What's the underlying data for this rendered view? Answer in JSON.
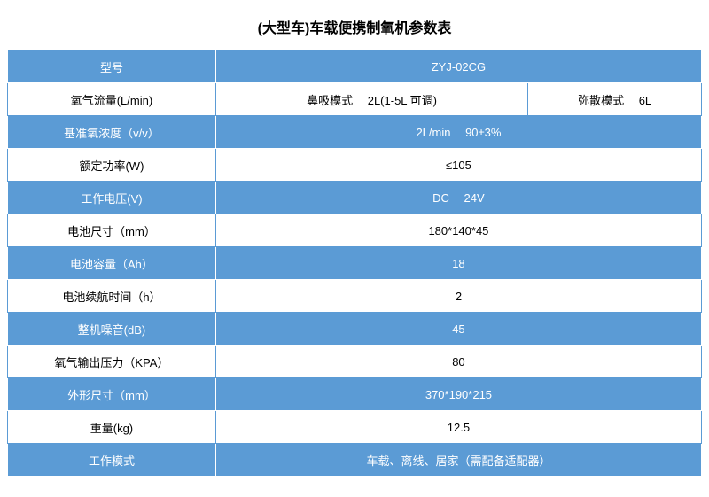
{
  "title": "(大型车)车载便携制氧机参数表",
  "colors": {
    "accent": "#5b9bd5",
    "text_on_accent": "#ffffff",
    "text_on_white": "#000000",
    "border": "#5b9bd5"
  },
  "rows": [
    {
      "style": "blue",
      "label": "型号",
      "value": "ZYJ-02CG"
    },
    {
      "style": "white",
      "label": "氧气流量(L/min)",
      "value_mid": "鼻吸模式  2L(1-5L 可调)",
      "value_right": "弥散模式  6L"
    },
    {
      "style": "blue",
      "label": "基准氧浓度（v/v）",
      "value": "2L/min  90±3%"
    },
    {
      "style": "white",
      "label": "额定功率(W)",
      "value": "≤105"
    },
    {
      "style": "blue",
      "label": "工作电压(V)",
      "value": "DC  24V"
    },
    {
      "style": "white",
      "label": "电池尺寸（mm）",
      "value": "180*140*45"
    },
    {
      "style": "blue",
      "label": "电池容量（Ah）",
      "value": "18"
    },
    {
      "style": "white",
      "label": "电池续航时间（h）",
      "value": "2"
    },
    {
      "style": "blue",
      "label": "整机噪音(dB)",
      "value": "45"
    },
    {
      "style": "white",
      "label": "氧气输出压力（KPA）",
      "value": "80"
    },
    {
      "style": "blue",
      "label": "外形尺寸（mm）",
      "value": "370*190*215"
    },
    {
      "style": "white",
      "label": "重量(kg)",
      "value": "12.5"
    },
    {
      "style": "blue",
      "label": "工作模式",
      "value": "车载、离线、居家（需配备适配器）"
    }
  ]
}
